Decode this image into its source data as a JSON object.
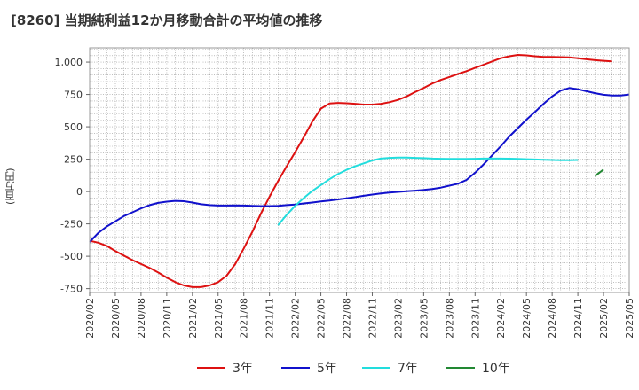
{
  "chart_data": {
    "type": "line",
    "title": "[8260]  当期純利益12か月移動合計の平均値の推移",
    "ylabel": "(百万円)",
    "xlabel": "",
    "ylim": [
      -780,
      1110
    ],
    "yticks": [
      -750,
      -500,
      -250,
      0,
      250,
      500,
      750,
      1000
    ],
    "ytick_labels": [
      "-750",
      "-500",
      "-250",
      "0",
      "250",
      "500",
      "750",
      "1,000"
    ],
    "xticks": [
      "2020/02",
      "2020/05",
      "2020/08",
      "2020/11",
      "2021/02",
      "2021/05",
      "2021/08",
      "2021/11",
      "2022/02",
      "2022/05",
      "2022/08",
      "2022/11",
      "2023/02",
      "2023/05",
      "2023/08",
      "2023/11",
      "2024/02",
      "2024/05",
      "2024/08",
      "2024/11",
      "2025/02",
      "2025/05"
    ],
    "x_start": "2020/02",
    "grid": true,
    "legend_position": "bottom",
    "series": [
      {
        "name": "3年",
        "color": "#dd1111",
        "start": "2020/02",
        "values": [
          -380,
          -395,
          -420,
          -460,
          -495,
          -530,
          -560,
          -590,
          -625,
          -665,
          -700,
          -725,
          -738,
          -738,
          -725,
          -700,
          -650,
          -560,
          -440,
          -310,
          -170,
          -40,
          80,
          195,
          305,
          420,
          540,
          640,
          680,
          685,
          682,
          678,
          672,
          672,
          678,
          690,
          708,
          735,
          768,
          800,
          835,
          862,
          885,
          908,
          930,
          955,
          980,
          1005,
          1030,
          1045,
          1055,
          1052,
          1045,
          1040,
          1040,
          1038,
          1036,
          1030,
          1022,
          1015,
          1010,
          1005
        ]
      },
      {
        "name": "5年",
        "color": "#1111cc",
        "start": "2020/02",
        "values": [
          -390,
          -320,
          -270,
          -230,
          -190,
          -160,
          -130,
          -105,
          -88,
          -78,
          -72,
          -75,
          -85,
          -98,
          -105,
          -108,
          -108,
          -107,
          -108,
          -110,
          -112,
          -112,
          -110,
          -105,
          -100,
          -92,
          -85,
          -77,
          -69,
          -61,
          -52,
          -43,
          -33,
          -23,
          -15,
          -8,
          -3,
          2,
          7,
          12,
          20,
          30,
          45,
          60,
          90,
          145,
          210,
          280,
          350,
          425,
          490,
          555,
          615,
          678,
          735,
          780,
          800,
          790,
          775,
          760,
          748,
          742,
          742,
          750
        ]
      },
      {
        "name": "7年",
        "color": "#22dddd",
        "start": "2021/12",
        "values": [
          -260,
          -180,
          -110,
          -50,
          5,
          50,
          95,
          135,
          168,
          195,
          218,
          240,
          255,
          260,
          262,
          262,
          260,
          258,
          255,
          253,
          252,
          252,
          252,
          253,
          255,
          255,
          255,
          254,
          252,
          250,
          248,
          246,
          244,
          242,
          242,
          244
        ]
      },
      {
        "name": "10年",
        "color": "#228833",
        "start": "2025/01",
        "values": [
          120,
          170
        ]
      }
    ]
  }
}
